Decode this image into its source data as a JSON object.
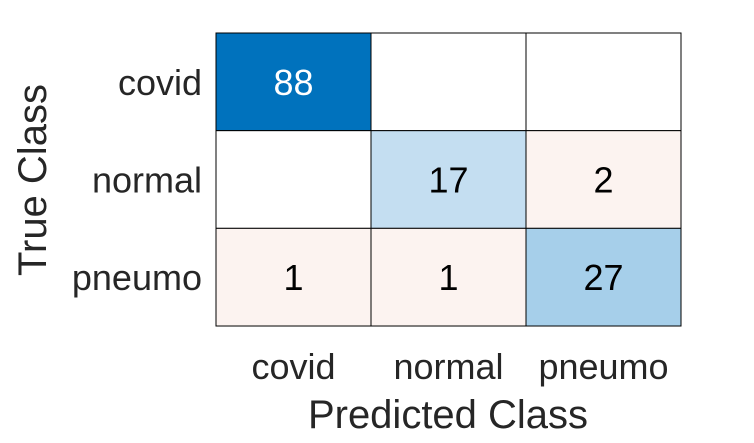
{
  "chart_data": {
    "type": "heatmap",
    "title": "",
    "xlabel": "Predicted Class",
    "ylabel": "True Class",
    "x_categories": [
      "covid",
      "normal",
      "pneumo"
    ],
    "y_categories": [
      "covid",
      "normal",
      "pneumo"
    ],
    "values": [
      [
        88,
        null,
        null
      ],
      [
        null,
        17,
        2
      ],
      [
        1,
        1,
        27
      ]
    ],
    "colors": {
      "diagonal_high": "#0072bd",
      "diagonal_mid": "#a6cfea",
      "diagonal_low": "#c4def1",
      "off_diagonal": "#fcf3f0",
      "empty": "#ffffff",
      "text_light": "#ffffff",
      "text_dark": "#000000",
      "grid": "#000000"
    }
  }
}
